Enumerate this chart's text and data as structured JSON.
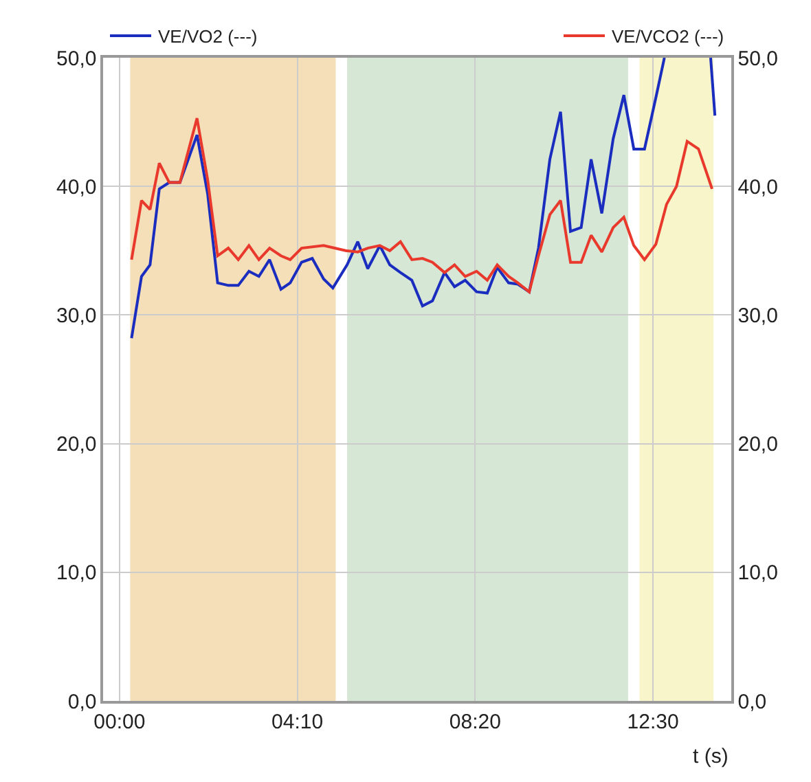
{
  "chart_data": {
    "type": "line",
    "xlabel": "t (s)",
    "xlim": [
      -23,
      860
    ],
    "xticks": [
      {
        "value": 0,
        "label": "00:00"
      },
      {
        "value": 250,
        "label": "04:10"
      },
      {
        "value": 500,
        "label": "08:20"
      },
      {
        "value": 750,
        "label": "12:30"
      }
    ],
    "ylim": [
      0,
      50
    ],
    "yticks": [
      {
        "value": 0,
        "label": "0,0"
      },
      {
        "value": 10,
        "label": "10,0"
      },
      {
        "value": 20,
        "label": "20,0"
      },
      {
        "value": 30,
        "label": "30,0"
      },
      {
        "value": 40,
        "label": "40,0"
      },
      {
        "value": 50,
        "label": "50,0"
      }
    ],
    "y2lim": [
      0,
      50
    ],
    "y2ticks": [
      {
        "value": 0,
        "label": "0,0"
      },
      {
        "value": 10,
        "label": "10,0"
      },
      {
        "value": 20,
        "label": "20,0"
      },
      {
        "value": 30,
        "label": "30,0"
      },
      {
        "value": 40,
        "label": "40,0"
      },
      {
        "value": 50,
        "label": "50,0"
      }
    ],
    "grid": true,
    "legend": "top",
    "marker": "none",
    "line_style": "solid",
    "bands": [
      {
        "axis": "x",
        "from": 15,
        "to": 304,
        "color": "#f5dfb9"
      },
      {
        "axis": "x",
        "from": 320,
        "to": 715,
        "color": "#d6e8d5"
      },
      {
        "axis": "x",
        "from": 731,
        "to": 835,
        "color": "#f7f5c9"
      }
    ],
    "series": [
      {
        "name": "VE/VO2 (---)",
        "color": "#1a2dbf",
        "axis": "y",
        "x": [
          17,
          31,
          43,
          56,
          70,
          85,
          109,
          124,
          138,
          153,
          167,
          182,
          196,
          211,
          227,
          240,
          256,
          271,
          287,
          300,
          320,
          335,
          349,
          366,
          380,
          395,
          411,
          426,
          440,
          457,
          471,
          486,
          502,
          517,
          531,
          547,
          560,
          576,
          589,
          605,
          620,
          634,
          649,
          663,
          678,
          694,
          709,
          723,
          738,
          754,
          766,
          798,
          831,
          837
        ],
        "values": [
          28.2,
          33.0,
          33.9,
          39.8,
          40.3,
          40.3,
          44.0,
          39.4,
          32.5,
          32.3,
          32.3,
          33.4,
          33.0,
          34.3,
          32.0,
          32.5,
          34.1,
          34.4,
          32.8,
          32.1,
          33.9,
          35.7,
          33.6,
          35.4,
          33.9,
          33.3,
          32.7,
          30.7,
          31.1,
          33.3,
          32.2,
          32.7,
          31.8,
          31.7,
          33.7,
          32.5,
          32.4,
          31.8,
          35.2,
          42.1,
          45.8,
          36.5,
          36.8,
          42.1,
          37.9,
          43.7,
          47.1,
          42.9,
          42.9,
          46.9,
          50.0,
          null,
          50.0,
          45.5
        ]
      },
      {
        "name": "VE/VCO2 (---)",
        "color": "#e8392c",
        "axis": "y2",
        "x": [
          17,
          31,
          43,
          56,
          70,
          85,
          109,
          124,
          138,
          153,
          167,
          182,
          196,
          211,
          227,
          240,
          256,
          287,
          318,
          335,
          349,
          366,
          380,
          395,
          411,
          426,
          440,
          457,
          471,
          486,
          502,
          517,
          531,
          547,
          560,
          576,
          589,
          605,
          620,
          634,
          649,
          663,
          678,
          694,
          709,
          723,
          738,
          754,
          769,
          783,
          798,
          814,
          833
        ],
        "values": [
          34.3,
          38.9,
          38.2,
          41.8,
          40.3,
          40.3,
          45.3,
          40.5,
          34.6,
          35.2,
          34.3,
          35.4,
          34.3,
          35.2,
          34.6,
          34.3,
          35.2,
          35.4,
          35.0,
          34.9,
          35.2,
          35.4,
          35.0,
          35.7,
          34.3,
          34.4,
          34.1,
          33.3,
          33.9,
          33.0,
          33.4,
          32.7,
          33.9,
          33.0,
          32.5,
          31.8,
          34.6,
          37.8,
          38.9,
          34.1,
          34.1,
          36.2,
          34.9,
          36.8,
          37.6,
          35.4,
          34.3,
          35.5,
          38.6,
          40.0,
          43.5,
          42.9,
          39.8
        ]
      }
    ]
  }
}
